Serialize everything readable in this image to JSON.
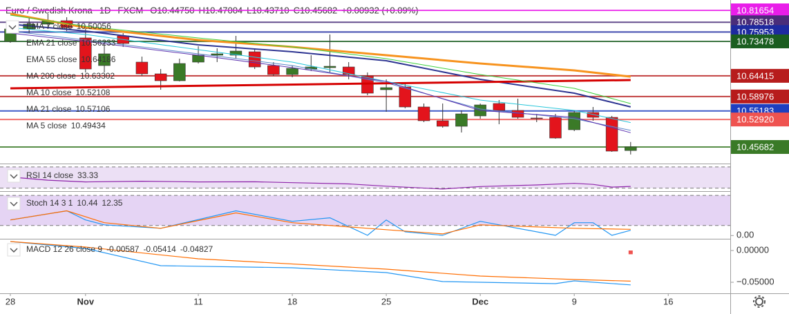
{
  "chart_data": [
    {
      "type": "candlestick",
      "title": "Euro / Swedish Krona",
      "interval": "1D",
      "source": "FXCM",
      "ohlc_labels": [
        "O10.44750",
        "H10.47004",
        "L10.43710",
        "C10.45682"
      ],
      "change_label": "+0.00932 (+0.09%)",
      "x": [
        0,
        1,
        2,
        3,
        4,
        5,
        6,
        7,
        8,
        9,
        10,
        11,
        12,
        13,
        14,
        15,
        16,
        17,
        18,
        19,
        20,
        21,
        22,
        23,
        24,
        25,
        26,
        27,
        28,
        29,
        30,
        31,
        32,
        33
      ],
      "open": [
        10.7348,
        10.7675,
        10.7802,
        10.7893,
        10.7439,
        10.6712,
        10.7493,
        10.6803,
        10.6494,
        10.6312,
        10.6803,
        10.6985,
        10.6985,
        10.7075,
        10.6712,
        10.6476,
        10.6621,
        10.6657,
        10.6675,
        10.6439,
        10.6076,
        10.6149,
        10.5622,
        10.5259,
        10.5113,
        10.5386,
        10.5713,
        10.5531,
        10.5331,
        10.5349,
        10.5022,
        10.5477,
        10.5349,
        10.4475
      ],
      "high": [
        10.7893,
        10.7984,
        10.8075,
        10.7984,
        10.7711,
        10.7348,
        10.7566,
        10.6948,
        10.6621,
        10.6894,
        10.7221,
        10.7166,
        10.7493,
        10.7166,
        10.6803,
        10.6712,
        10.6985,
        10.753,
        10.6803,
        10.653,
        10.6349,
        10.6258,
        10.5713,
        10.5713,
        10.5531,
        10.5713,
        10.5804,
        10.584,
        10.544,
        10.544,
        10.5531,
        10.5622,
        10.5386,
        10.47004
      ],
      "low": [
        10.7312,
        10.7566,
        10.7675,
        10.762,
        10.653,
        10.653,
        10.7203,
        10.6439,
        10.6076,
        10.6294,
        10.6766,
        10.6803,
        10.6894,
        10.6621,
        10.6439,
        10.6403,
        10.6567,
        10.653,
        10.6349,
        10.5931,
        10.5495,
        10.5586,
        10.5222,
        10.5077,
        10.495,
        10.5313,
        10.5168,
        10.5313,
        10.5222,
        10.4786,
        10.4986,
        10.5259,
        10.4441,
        10.4371
      ],
      "close": [
        10.7675,
        10.7802,
        10.7893,
        10.7711,
        10.6621,
        10.7021,
        10.7293,
        10.6494,
        10.6312,
        10.6766,
        10.6985,
        10.7021,
        10.7094,
        10.6675,
        10.6476,
        10.6639,
        10.6675,
        10.6693,
        10.6476,
        10.5985,
        10.6131,
        10.5622,
        10.5259,
        10.5113,
        10.544,
        10.5676,
        10.5531,
        10.5349,
        10.5313,
        10.4804,
        10.5477,
        10.5349,
        10.4459,
        10.45682
      ],
      "up_color": "#3a7a27",
      "down_color": "#e3141c",
      "series": [
        {
          "name": "EMA 7 close",
          "color": "#5b86c9",
          "width": 1,
          "x": [
            0,
            4,
            10,
            15,
            20,
            25,
            30,
            33
          ],
          "values": [
            10.762,
            10.7384,
            10.7021,
            10.6712,
            10.6258,
            10.5568,
            10.5313,
            10.50056
          ]
        },
        {
          "name": "EMA 21 close",
          "color": "#2e3592",
          "width": 2,
          "x": [
            0,
            4,
            10,
            15,
            20,
            25,
            30,
            33
          ],
          "values": [
            10.7802,
            10.762,
            10.7257,
            10.7075,
            10.6839,
            10.6349,
            10.5985,
            10.56233
          ]
        },
        {
          "name": "EMA 55 close",
          "color": "#f7931e",
          "width": 3,
          "x": [
            0,
            4,
            10,
            15,
            20,
            25,
            30,
            33
          ],
          "values": [
            10.8075,
            10.7711,
            10.7384,
            10.7203,
            10.6985,
            10.6766,
            10.6585,
            10.64186
          ]
        },
        {
          "name": "MA 200 close",
          "color": "#d50000",
          "width": 3,
          "x": [
            0,
            33
          ],
          "values": [
            10.6112,
            10.63302
          ]
        },
        {
          "name": "MA 10 close",
          "color": "#26c6da",
          "width": 1,
          "x": [
            0,
            4,
            10,
            15,
            20,
            25,
            30,
            33
          ],
          "values": [
            10.7711,
            10.753,
            10.713,
            10.6803,
            10.6294,
            10.5804,
            10.5531,
            10.52108
          ]
        },
        {
          "name": "MA 21 close",
          "color": "#3ccf3c",
          "width": 1,
          "x": [
            0,
            4,
            10,
            15,
            20,
            25,
            30,
            33
          ],
          "values": [
            10.8038,
            10.7748,
            10.7439,
            10.7203,
            10.6894,
            10.6476,
            10.6112,
            10.57106
          ]
        },
        {
          "name": "MA 5 close",
          "color": "#5e35b1",
          "width": 1,
          "x": [
            0,
            4,
            10,
            15,
            20,
            25,
            30,
            33
          ],
          "values": [
            10.7566,
            10.7348,
            10.6985,
            10.6657,
            10.6294,
            10.5531,
            10.5349,
            10.49434
          ]
        }
      ],
      "price_lines": [
        {
          "value": 10.81654,
          "color": "#e91ee9"
        },
        {
          "value": 10.78518,
          "color": "#4a2d7a"
        },
        {
          "value": 10.75953,
          "color": "#1e2aa0"
        },
        {
          "value": 10.73478,
          "color": "#1b5e20"
        },
        {
          "value": 10.64415,
          "color": "#b71c1c"
        },
        {
          "value": 10.58976,
          "color": "#b71c1c"
        },
        {
          "value": 10.55183,
          "color": "#1e3fc0"
        },
        {
          "value": 10.5292,
          "label": "10.52920",
          "color": "#ef5350"
        },
        {
          "value": 10.45682,
          "color": "#3a7a27"
        }
      ],
      "xlim": [
        -0.55,
        38.3
      ],
      "xticks": [
        {
          "value": 0,
          "label": "28"
        },
        {
          "value": 4,
          "label": "Nov"
        },
        {
          "value": 10,
          "label": "11"
        },
        {
          "value": 15,
          "label": "18"
        },
        {
          "value": 20,
          "label": "25"
        },
        {
          "value": 25,
          "label": "Dec"
        },
        {
          "value": 30,
          "label": "9"
        },
        {
          "value": 35,
          "label": "16"
        }
      ],
      "ylim": [
        10.4132,
        10.8438
      ]
    },
    {
      "type": "line",
      "title": "RSI 14 close",
      "series": [
        {
          "color": "#8e24aa",
          "x": [
            0,
            2,
            4,
            7,
            10,
            13,
            15,
            18,
            20,
            23,
            25,
            28,
            30,
            31,
            32,
            33
          ],
          "values": [
            51,
            45,
            41.7,
            43,
            41.7,
            42,
            40.3,
            38,
            33.7,
            28.3,
            33,
            36,
            39,
            37,
            32,
            33.33
          ]
        }
      ],
      "bands": [
        70,
        30
      ],
      "band_color": "#e6d6f2",
      "ylim": [
        24.3,
        75
      ]
    },
    {
      "type": "line",
      "title": "Stoch 14 3 1",
      "series": [
        {
          "color": "#2196f3",
          "x": [
            0,
            3,
            4,
            5,
            8,
            12,
            15,
            17,
            19,
            20,
            21,
            23,
            25,
            29,
            30,
            31,
            32,
            33
          ],
          "values": [
            31.1,
            49.2,
            31.1,
            21.3,
            14.4,
            49.2,
            28.3,
            35.3,
            0.4,
            31.1,
            7.4,
            0.4,
            28.3,
            0.4,
            25.5,
            25.5,
            0.4,
            10.44
          ]
        },
        {
          "color": "#ff6d00",
          "x": [
            0,
            3,
            5,
            8,
            12,
            15,
            19,
            23,
            25,
            30,
            33
          ],
          "values": [
            31.1,
            49.2,
            25.5,
            14.4,
            45,
            25.5,
            14.4,
            3.2,
            21.3,
            14.4,
            12.35
          ]
        }
      ],
      "bands": [
        80,
        20
      ],
      "band_color": "#dcc6f0",
      "ylim": [
        -6.5,
        87
      ],
      "yticks": [
        {
          "value": 0,
          "label": "0.00"
        }
      ]
    },
    {
      "type": "line",
      "title": "MACD 12 26 close 9",
      "series": [
        {
          "color": "#ef5350",
          "style": "histogram",
          "x": [
            33
          ],
          "values": [
            -0.00587
          ]
        },
        {
          "color": "#2196f3",
          "x": [
            0,
            4,
            8,
            15,
            20,
            23,
            29,
            30,
            33
          ],
          "values": [
            0.0141,
            0.0033,
            -0.0239,
            -0.0272,
            -0.0348,
            -0.0489,
            -0.0522,
            -0.0478,
            -0.05414
          ]
        },
        {
          "color": "#ff6d00",
          "x": [
            0,
            4,
            10,
            20,
            25,
            30,
            33
          ],
          "values": [
            0.0141,
            0.0054,
            -0.013,
            -0.0293,
            -0.0402,
            -0.0457,
            -0.04827
          ]
        }
      ],
      "ylim": [
        -0.0674,
        0.0174
      ],
      "yticks": [
        {
          "value": 0,
          "label": "0.00000"
        },
        {
          "value": -0.05,
          "label": "−0.05000"
        }
      ]
    }
  ]
}
